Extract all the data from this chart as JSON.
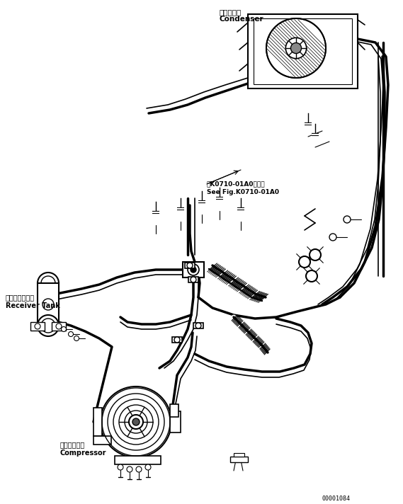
{
  "bg_color": "#ffffff",
  "line_color": "#000000",
  "fig_width": 5.69,
  "fig_height": 7.12,
  "dpi": 100,
  "labels": {
    "condenser_jp": "コンデンサ",
    "condenser_en": "Condenser",
    "receiver_jp": "レシーバタンク",
    "receiver_en": "Receiver Tank",
    "compressor_jp": "コンプレッサ",
    "compressor_en": "Compressor",
    "ref_jp": "第K0710-01A0図参照",
    "ref_en": "See Fig.K0710-01A0",
    "part_num": "00001084"
  }
}
